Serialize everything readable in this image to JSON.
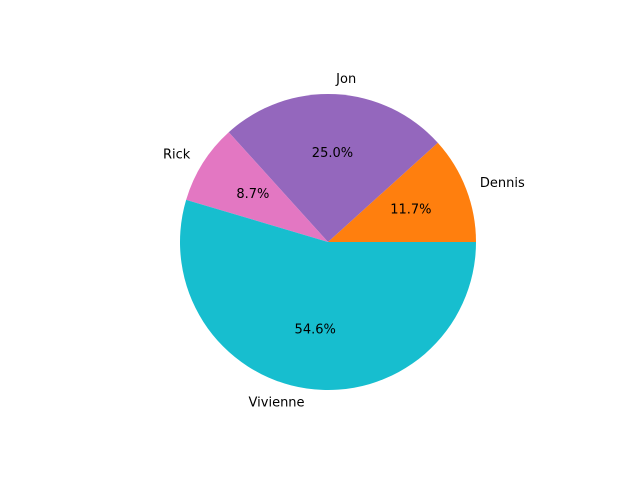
{
  "chart_data": {
    "type": "pie",
    "title": "",
    "labels": [
      "Dennis",
      "Jon",
      "Rick",
      "Vivienne"
    ],
    "values": [
      11.7,
      25.0,
      8.7,
      54.6
    ],
    "percent_labels": [
      "11.7%",
      "25.0%",
      "8.7%",
      "54.6%"
    ],
    "colors": [
      "#ff7f0e",
      "#9467bd",
      "#e377c2",
      "#17becf"
    ],
    "start_angle_deg": 0,
    "direction": "counterclockwise"
  }
}
